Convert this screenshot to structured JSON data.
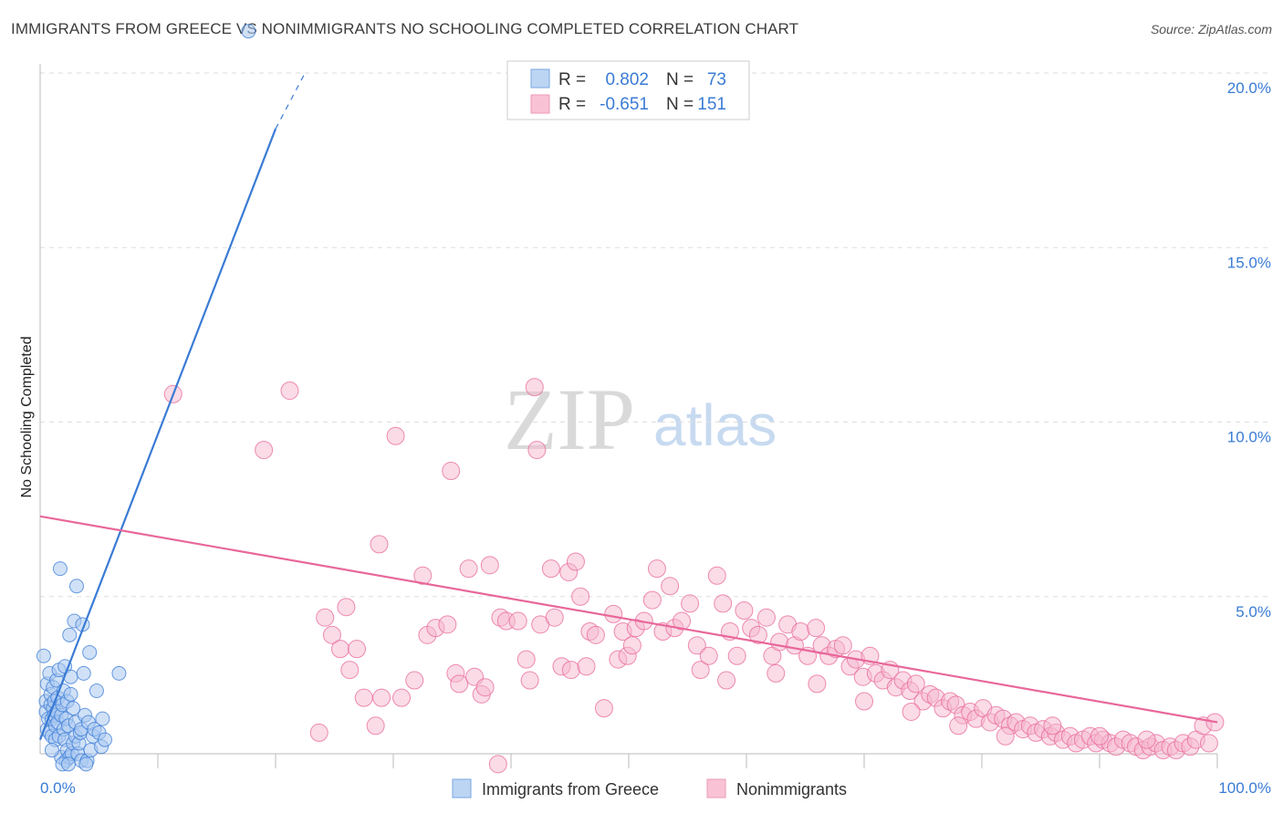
{
  "header": {
    "title": "IMMIGRANTS FROM GREECE VS NONIMMIGRANTS NO SCHOOLING COMPLETED CORRELATION CHART",
    "source": "Source: ZipAtlas.com"
  },
  "watermark": {
    "zip": "ZIP",
    "atlas": "atlas"
  },
  "colors": {
    "blue": "#3a7bd5",
    "blue_fill": "#a9c8f0",
    "pink": "#e8679a",
    "pink_fill": "#f5b8cd",
    "grid": "#dddddd",
    "tick_text": "#3a7bd5"
  },
  "legend": {
    "rows": [
      {
        "r_label": "R =",
        "r_value": "0.802",
        "n_label": "N =",
        "n_value": "73"
      },
      {
        "r_label": "R =",
        "r_value": "-0.651",
        "n_label": "N =",
        "n_value": "151"
      }
    ]
  },
  "chart_data": {
    "type": "scatter",
    "title": "IMMIGRANTS FROM GREECE VS NONIMMIGRANTS NO SCHOOLING COMPLETED CORRELATION CHART",
    "xlabel": "",
    "ylabel": "No Schooling Completed",
    "xlim": [
      0,
      100
    ],
    "ylim": [
      0,
      20
    ],
    "x_tick_labels": [
      "0.0%",
      "100.0%"
    ],
    "y_ticks": [
      5,
      10,
      15,
      20
    ],
    "y_tick_labels": [
      "5.0%",
      "10.0%",
      "15.0%",
      "20.0%"
    ],
    "grid": "horizontal dashed",
    "legend_position": "top-center and bottom",
    "series": [
      {
        "name": "Immigrants from Greece",
        "color": "#3a7bd5",
        "r": 0.802,
        "n": 73,
        "trend": {
          "x": [
            0.0,
            20.0
          ],
          "y": [
            0.9,
            18.4
          ],
          "dashed_extension_to": [
            22.5,
            20.0
          ]
        },
        "points": [
          [
            0.3,
            3.3
          ],
          [
            0.5,
            2.0
          ],
          [
            0.5,
            1.7
          ],
          [
            0.6,
            2.5
          ],
          [
            0.6,
            1.2
          ],
          [
            0.7,
            1.5
          ],
          [
            0.8,
            2.8
          ],
          [
            0.8,
            1.1
          ],
          [
            0.9,
            1.9
          ],
          [
            0.9,
            2.2
          ],
          [
            1.0,
            1.5
          ],
          [
            1.0,
            1.0
          ],
          [
            1.1,
            1.8
          ],
          [
            1.1,
            2.4
          ],
          [
            1.2,
            1.6
          ],
          [
            1.2,
            2.0
          ],
          [
            1.3,
            1.3
          ],
          [
            1.3,
            0.9
          ],
          [
            1.4,
            2.6
          ],
          [
            1.4,
            1.7
          ],
          [
            1.5,
            1.4
          ],
          [
            1.5,
            2.1
          ],
          [
            1.6,
            1.0
          ],
          [
            1.6,
            2.9
          ],
          [
            1.7,
            5.8
          ],
          [
            1.8,
            1.6
          ],
          [
            1.8,
            0.4
          ],
          [
            1.9,
            1.9
          ],
          [
            2.0,
            1.2
          ],
          [
            2.0,
            2.3
          ],
          [
            2.1,
            0.9
          ],
          [
            2.1,
            3.0
          ],
          [
            2.2,
            0.3
          ],
          [
            2.2,
            1.5
          ],
          [
            2.3,
            0.6
          ],
          [
            2.3,
            2.0
          ],
          [
            2.4,
            1.3
          ],
          [
            2.5,
            3.9
          ],
          [
            2.5,
            0.4
          ],
          [
            2.6,
            2.7
          ],
          [
            2.6,
            2.2
          ],
          [
            2.7,
            0.5
          ],
          [
            2.8,
            1.8
          ],
          [
            2.8,
            0.8
          ],
          [
            2.9,
            4.3
          ],
          [
            3.0,
            1.0
          ],
          [
            3.0,
            1.4
          ],
          [
            3.1,
            5.3
          ],
          [
            3.2,
            0.5
          ],
          [
            3.3,
            0.8
          ],
          [
            3.4,
            1.1
          ],
          [
            3.5,
            1.2
          ],
          [
            3.5,
            0.3
          ],
          [
            3.6,
            4.2
          ],
          [
            3.7,
            2.8
          ],
          [
            3.8,
            1.6
          ],
          [
            4.0,
            0.3
          ],
          [
            4.1,
            1.4
          ],
          [
            4.3,
            0.6
          ],
          [
            4.5,
            1.0
          ],
          [
            4.6,
            1.2
          ],
          [
            4.8,
            2.3
          ],
          [
            5.0,
            1.1
          ],
          [
            5.2,
            0.7
          ],
          [
            5.3,
            1.5
          ],
          [
            5.5,
            0.9
          ],
          [
            1.0,
            0.6
          ],
          [
            1.9,
            0.2
          ],
          [
            2.4,
            0.2
          ],
          [
            3.9,
            0.2
          ],
          [
            4.2,
            3.4
          ],
          [
            6.7,
            2.8
          ],
          [
            17.7,
            21.2
          ]
        ]
      },
      {
        "name": "Nonimmigrants",
        "color": "#e8679a",
        "r": -0.651,
        "n": 151,
        "trend": {
          "x": [
            0.0,
            100.0
          ],
          "y": [
            7.3,
            1.4
          ]
        },
        "points": [
          [
            11.3,
            10.8
          ],
          [
            19.0,
            9.2
          ],
          [
            21.2,
            10.9
          ],
          [
            23.7,
            1.1
          ],
          [
            24.2,
            4.4
          ],
          [
            24.8,
            3.9
          ],
          [
            25.5,
            3.5
          ],
          [
            26.0,
            4.7
          ],
          [
            26.3,
            2.9
          ],
          [
            26.9,
            3.5
          ],
          [
            27.5,
            2.1
          ],
          [
            28.5,
            1.3
          ],
          [
            28.8,
            6.5
          ],
          [
            29.0,
            2.1
          ],
          [
            30.2,
            9.6
          ],
          [
            30.7,
            2.1
          ],
          [
            31.8,
            2.6
          ],
          [
            32.5,
            5.6
          ],
          [
            32.9,
            3.9
          ],
          [
            33.6,
            4.1
          ],
          [
            34.6,
            4.2
          ],
          [
            34.9,
            8.6
          ],
          [
            35.3,
            2.8
          ],
          [
            35.6,
            2.5
          ],
          [
            36.4,
            5.8
          ],
          [
            36.9,
            2.7
          ],
          [
            37.5,
            2.2
          ],
          [
            37.8,
            2.4
          ],
          [
            38.2,
            5.9
          ],
          [
            38.9,
            0.2
          ],
          [
            39.1,
            4.4
          ],
          [
            39.6,
            4.3
          ],
          [
            40.6,
            4.3
          ],
          [
            41.3,
            3.2
          ],
          [
            41.6,
            2.6
          ],
          [
            42.0,
            11.0
          ],
          [
            42.2,
            9.2
          ],
          [
            42.5,
            4.2
          ],
          [
            43.4,
            5.8
          ],
          [
            43.7,
            4.4
          ],
          [
            44.3,
            3.0
          ],
          [
            44.9,
            5.7
          ],
          [
            45.1,
            2.9
          ],
          [
            45.5,
            6.0
          ],
          [
            45.9,
            5.0
          ],
          [
            46.4,
            3.0
          ],
          [
            46.7,
            4.0
          ],
          [
            47.2,
            3.9
          ],
          [
            47.9,
            1.8
          ],
          [
            48.7,
            4.5
          ],
          [
            49.1,
            3.2
          ],
          [
            49.5,
            4.0
          ],
          [
            49.9,
            3.3
          ],
          [
            50.6,
            4.1
          ],
          [
            51.3,
            4.3
          ],
          [
            52.0,
            4.9
          ],
          [
            52.4,
            5.8
          ],
          [
            52.9,
            4.0
          ],
          [
            53.5,
            5.3
          ],
          [
            53.9,
            4.1
          ],
          [
            54.5,
            4.3
          ],
          [
            55.2,
            4.8
          ],
          [
            55.8,
            3.6
          ],
          [
            56.1,
            2.9
          ],
          [
            56.8,
            3.3
          ],
          [
            57.5,
            5.6
          ],
          [
            58.0,
            4.8
          ],
          [
            58.6,
            4.0
          ],
          [
            59.2,
            3.3
          ],
          [
            59.8,
            4.6
          ],
          [
            60.4,
            4.1
          ],
          [
            61.0,
            3.9
          ],
          [
            61.7,
            4.4
          ],
          [
            62.2,
            3.3
          ],
          [
            62.8,
            3.7
          ],
          [
            63.5,
            4.2
          ],
          [
            64.1,
            3.6
          ],
          [
            64.6,
            4.0
          ],
          [
            65.2,
            3.3
          ],
          [
            65.9,
            4.1
          ],
          [
            66.4,
            3.6
          ],
          [
            67.0,
            3.3
          ],
          [
            67.6,
            3.5
          ],
          [
            68.2,
            3.6
          ],
          [
            68.8,
            3.0
          ],
          [
            69.3,
            3.2
          ],
          [
            69.9,
            2.7
          ],
          [
            70.5,
            3.3
          ],
          [
            71.0,
            2.8
          ],
          [
            71.6,
            2.6
          ],
          [
            72.2,
            2.9
          ],
          [
            72.7,
            2.4
          ],
          [
            73.3,
            2.6
          ],
          [
            73.9,
            2.3
          ],
          [
            74.4,
            2.5
          ],
          [
            75.0,
            2.0
          ],
          [
            75.6,
            2.2
          ],
          [
            76.1,
            2.1
          ],
          [
            76.7,
            1.8
          ],
          [
            77.3,
            2.0
          ],
          [
            77.8,
            1.9
          ],
          [
            78.4,
            1.6
          ],
          [
            79.0,
            1.7
          ],
          [
            79.5,
            1.5
          ],
          [
            80.1,
            1.8
          ],
          [
            80.7,
            1.4
          ],
          [
            81.2,
            1.6
          ],
          [
            81.8,
            1.5
          ],
          [
            82.4,
            1.3
          ],
          [
            82.9,
            1.4
          ],
          [
            83.5,
            1.2
          ],
          [
            84.1,
            1.3
          ],
          [
            84.6,
            1.1
          ],
          [
            85.2,
            1.2
          ],
          [
            85.8,
            1.0
          ],
          [
            86.3,
            1.1
          ],
          [
            86.9,
            0.9
          ],
          [
            87.5,
            1.0
          ],
          [
            88.0,
            0.8
          ],
          [
            88.6,
            0.9
          ],
          [
            89.2,
            1.0
          ],
          [
            89.7,
            0.8
          ],
          [
            90.3,
            0.9
          ],
          [
            90.9,
            0.8
          ],
          [
            91.4,
            0.7
          ],
          [
            92.0,
            0.9
          ],
          [
            92.6,
            0.8
          ],
          [
            93.1,
            0.7
          ],
          [
            93.7,
            0.6
          ],
          [
            94.3,
            0.7
          ],
          [
            94.8,
            0.8
          ],
          [
            95.4,
            0.6
          ],
          [
            96.0,
            0.7
          ],
          [
            96.5,
            0.6
          ],
          [
            97.1,
            0.8
          ],
          [
            97.7,
            0.7
          ],
          [
            98.2,
            0.9
          ],
          [
            98.8,
            1.3
          ],
          [
            99.3,
            0.8
          ],
          [
            99.8,
            1.4
          ],
          [
            66.0,
            2.5
          ],
          [
            70.0,
            2.0
          ],
          [
            74.0,
            1.7
          ],
          [
            78.0,
            1.3
          ],
          [
            82.0,
            1.0
          ],
          [
            86.0,
            1.3
          ],
          [
            90.0,
            1.0
          ],
          [
            94.0,
            0.9
          ],
          [
            58.3,
            2.6
          ],
          [
            62.5,
            2.8
          ],
          [
            50.3,
            3.6
          ]
        ]
      }
    ]
  }
}
